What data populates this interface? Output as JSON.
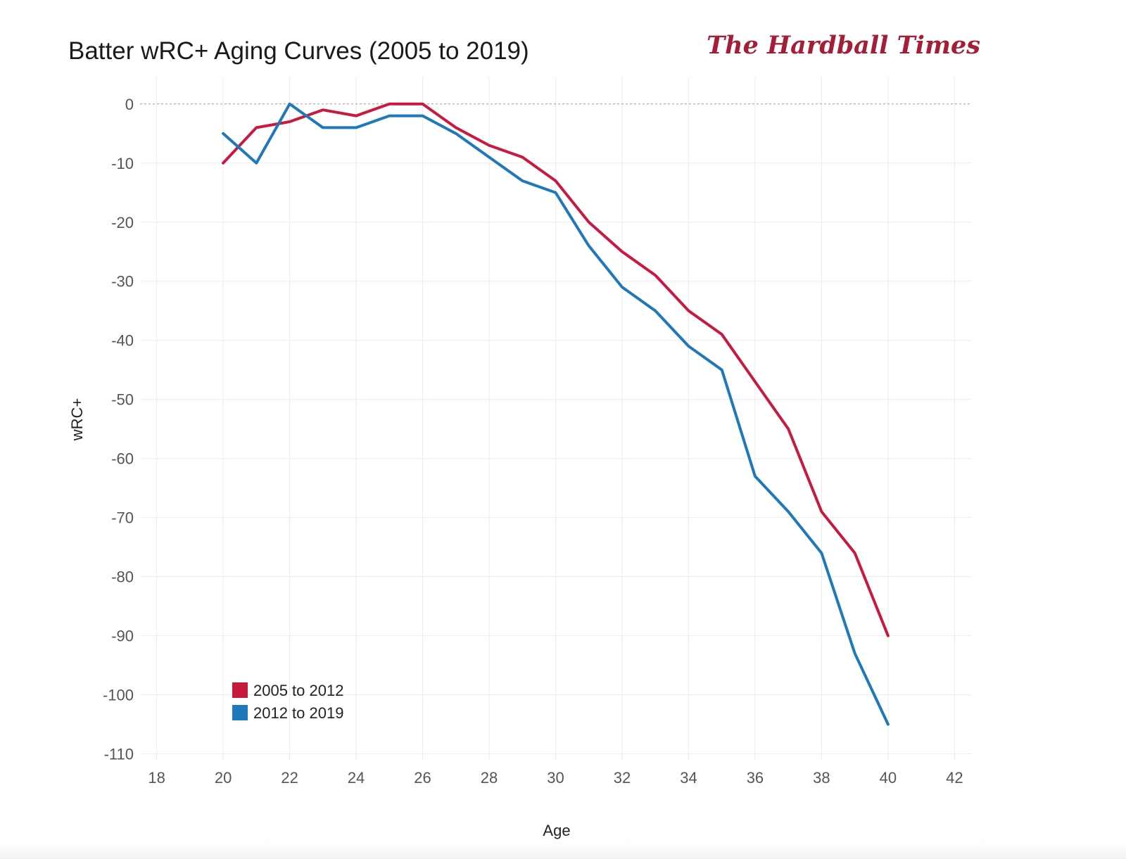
{
  "chart_data": {
    "type": "line",
    "title": "Batter wRC+ Aging Curves (2005 to 2019)",
    "brand": "The Hardball Times",
    "xlabel": "Age",
    "ylabel": "wRC+",
    "xlim": [
      17.5,
      42.5
    ],
    "ylim": [
      -111,
      4.5
    ],
    "x_ticks": [
      18,
      20,
      22,
      24,
      26,
      28,
      30,
      32,
      34,
      36,
      38,
      40,
      42
    ],
    "y_ticks": [
      0,
      -10,
      -20,
      -30,
      -40,
      -50,
      -60,
      -70,
      -80,
      -90,
      -100,
      -110
    ],
    "reference_line": 0,
    "grid": true,
    "legend_position": "bottom-left",
    "x": [
      20,
      21,
      22,
      23,
      24,
      25,
      26,
      27,
      28,
      29,
      30,
      31,
      32,
      33,
      34,
      35,
      36,
      37,
      38,
      39,
      40
    ],
    "series": [
      {
        "name": "2005 to 2012",
        "color": "#c8193f",
        "values": [
          -10,
          -4,
          -3,
          -1,
          -2,
          0,
          0,
          -4,
          -7,
          -9,
          -13,
          -20,
          -25,
          -29,
          -35,
          -39,
          -47,
          -55,
          -69,
          -76,
          -90
        ]
      },
      {
        "name": "2012 to 2019",
        "color": "#1f78b9",
        "values": [
          -5,
          -10,
          0,
          -4,
          -4,
          -2,
          -2,
          -5,
          -9,
          -13,
          -15,
          -24,
          -31,
          -35,
          -41,
          -45,
          -63,
          -69,
          -76,
          -93,
          -105
        ]
      }
    ]
  }
}
